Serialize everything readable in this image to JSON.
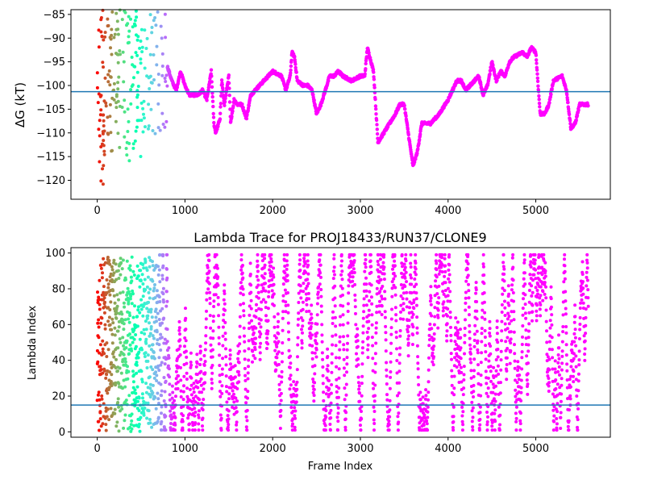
{
  "chart_data": [
    {
      "type": "scatter",
      "title": "",
      "xlabel": "",
      "ylabel": "ΔG (kT)",
      "xlim": [
        -300,
        5850
      ],
      "ylim": [
        -124,
        -84
      ],
      "xticks": [
        0,
        1000,
        2000,
        3000,
        4000,
        5000
      ],
      "yticks": [
        -120,
        -115,
        -110,
        -105,
        -100,
        -95,
        -90,
        -85
      ],
      "hline": -101.3,
      "hline_color": "#1f77b4",
      "colormap": "rainbow",
      "x_max": 5600,
      "trace_knots": [
        [
          800,
          -96
        ],
        [
          850,
          -99
        ],
        [
          900,
          -101
        ],
        [
          950,
          -97
        ],
        [
          1000,
          -100
        ],
        [
          1050,
          -102
        ],
        [
          1100,
          -102
        ],
        [
          1150,
          -102
        ],
        [
          1200,
          -101
        ],
        [
          1250,
          -103
        ],
        [
          1300,
          -97
        ],
        [
          1330,
          -108
        ],
        [
          1350,
          -110
        ],
        [
          1400,
          -107
        ],
        [
          1420,
          -99
        ],
        [
          1450,
          -104
        ],
        [
          1500,
          -98
        ],
        [
          1520,
          -108
        ],
        [
          1560,
          -103
        ],
        [
          1600,
          -104
        ],
        [
          1650,
          -104
        ],
        [
          1700,
          -107
        ],
        [
          1750,
          -102
        ],
        [
          1800,
          -101
        ],
        [
          1900,
          -99
        ],
        [
          2000,
          -97
        ],
        [
          2100,
          -98
        ],
        [
          2150,
          -101
        ],
        [
          2200,
          -98
        ],
        [
          2220,
          -93
        ],
        [
          2250,
          -94
        ],
        [
          2280,
          -99
        ],
        [
          2350,
          -100
        ],
        [
          2400,
          -100
        ],
        [
          2450,
          -101
        ],
        [
          2500,
          -106
        ],
        [
          2550,
          -104
        ],
        [
          2600,
          -101
        ],
        [
          2650,
          -98
        ],
        [
          2700,
          -98
        ],
        [
          2750,
          -97
        ],
        [
          2800,
          -98
        ],
        [
          2900,
          -99
        ],
        [
          3000,
          -98
        ],
        [
          3050,
          -98
        ],
        [
          3080,
          -92
        ],
        [
          3150,
          -97
        ],
        [
          3200,
          -112
        ],
        [
          3300,
          -109
        ],
        [
          3400,
          -106
        ],
        [
          3450,
          -104
        ],
        [
          3500,
          -104
        ],
        [
          3600,
          -117
        ],
        [
          3650,
          -114
        ],
        [
          3700,
          -108
        ],
        [
          3800,
          -108
        ],
        [
          3900,
          -106
        ],
        [
          4000,
          -103
        ],
        [
          4050,
          -101
        ],
        [
          4100,
          -99
        ],
        [
          4150,
          -99
        ],
        [
          4200,
          -101
        ],
        [
          4250,
          -100
        ],
        [
          4300,
          -99
        ],
        [
          4350,
          -98
        ],
        [
          4400,
          -102
        ],
        [
          4450,
          -100
        ],
        [
          4500,
          -95
        ],
        [
          4550,
          -99
        ],
        [
          4600,
          -97
        ],
        [
          4650,
          -98
        ],
        [
          4700,
          -95
        ],
        [
          4750,
          -94
        ],
        [
          4850,
          -93
        ],
        [
          4900,
          -94
        ],
        [
          4950,
          -92
        ],
        [
          5000,
          -93
        ],
        [
          5050,
          -106
        ],
        [
          5100,
          -106
        ],
        [
          5150,
          -104
        ],
        [
          5200,
          -99
        ],
        [
          5300,
          -98
        ],
        [
          5350,
          -101
        ],
        [
          5400,
          -109
        ],
        [
          5450,
          -108
        ],
        [
          5500,
          -104
        ],
        [
          5600,
          -104
        ]
      ],
      "early_scatter_ranges": [
        [
          0,
          100,
          -121,
          -84
        ],
        [
          100,
          300,
          -114,
          -84
        ],
        [
          300,
          500,
          -116,
          -84
        ],
        [
          500,
          800,
          -111,
          -84
        ]
      ]
    },
    {
      "type": "scatter",
      "title": "Lambda Trace for PROJ18433/RUN37/CLONE9",
      "xlabel": "Frame Index",
      "ylabel": "Lambda Index",
      "xlim": [
        -300,
        5850
      ],
      "ylim": [
        -3,
        103
      ],
      "xticks": [
        0,
        1000,
        2000,
        3000,
        4000,
        5000
      ],
      "yticks": [
        0,
        20,
        40,
        60,
        80,
        100
      ],
      "hline": 15,
      "hline_color": "#1f77b4",
      "colormap": "rainbow",
      "x_max": 5600,
      "lambda_min": 0,
      "lambda_max": 100
    }
  ]
}
